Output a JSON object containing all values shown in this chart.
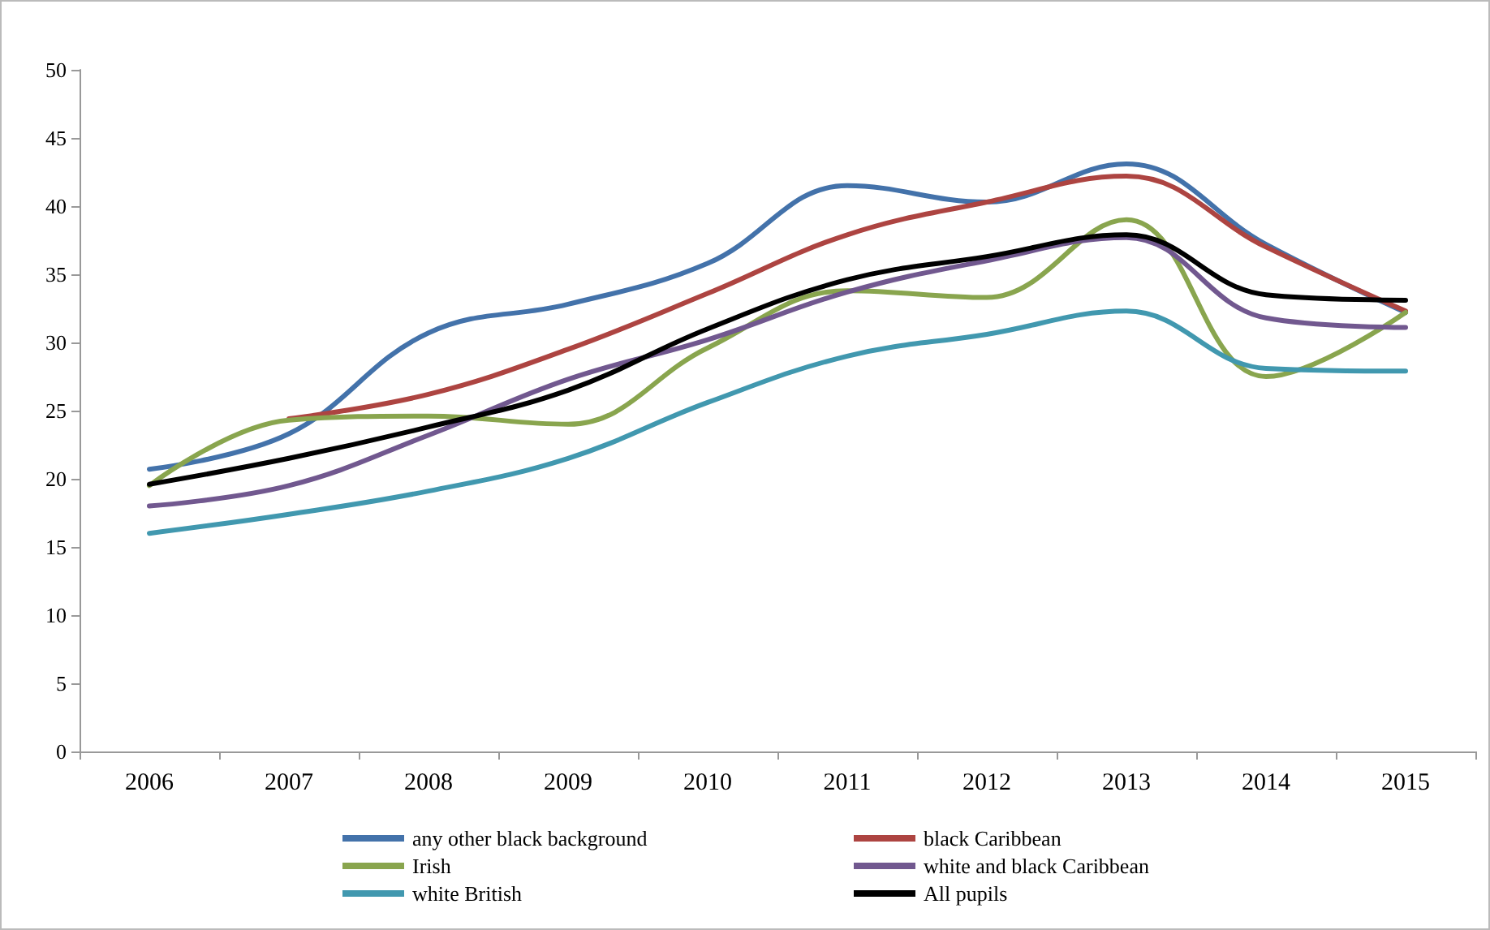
{
  "chart_data": {
    "type": "line",
    "categories": [
      "2006",
      "2007",
      "2008",
      "2009",
      "2010",
      "2011",
      "2012",
      "2013",
      "2014",
      "2015"
    ],
    "series": [
      {
        "name": "any other black background",
        "color": "#4372aa",
        "values": [
          20.7,
          23.3,
          30.7,
          32.8,
          35.8,
          41.5,
          40.3,
          43.1,
          37.2,
          32.2
        ]
      },
      {
        "name": "black Caribbean",
        "color": "#ad4441",
        "values": [
          null,
          24.4,
          26.2,
          29.5,
          33.6,
          37.9,
          40.3,
          42.2,
          37.0,
          32.3
        ]
      },
      {
        "name": "Irish",
        "color": "#89a54e",
        "values": [
          19.5,
          24.3,
          24.6,
          24.0,
          29.6,
          33.8,
          33.3,
          39.0,
          27.5,
          32.2
        ]
      },
      {
        "name": "white and black Caribbean",
        "color": "#71588f",
        "values": [
          18.0,
          19.5,
          23.2,
          27.3,
          30.2,
          33.7,
          36.0,
          37.7,
          31.8,
          31.1
        ]
      },
      {
        "name": "white British",
        "color": "#4198af",
        "values": [
          16.0,
          17.4,
          19.1,
          21.5,
          25.6,
          29.0,
          30.6,
          32.3,
          28.1,
          27.9
        ]
      },
      {
        "name": "All pupils",
        "color": "#000000",
        "values": [
          19.6,
          21.5,
          23.8,
          26.5,
          31.0,
          34.6,
          36.3,
          37.9,
          33.5,
          33.1
        ]
      }
    ],
    "ylim": [
      0,
      50
    ],
    "yticks": [
      0,
      5,
      10,
      15,
      20,
      25,
      30,
      35,
      40,
      45,
      50
    ],
    "grid": false,
    "legend": "bottom",
    "marker": "none",
    "line_style": "solid"
  }
}
